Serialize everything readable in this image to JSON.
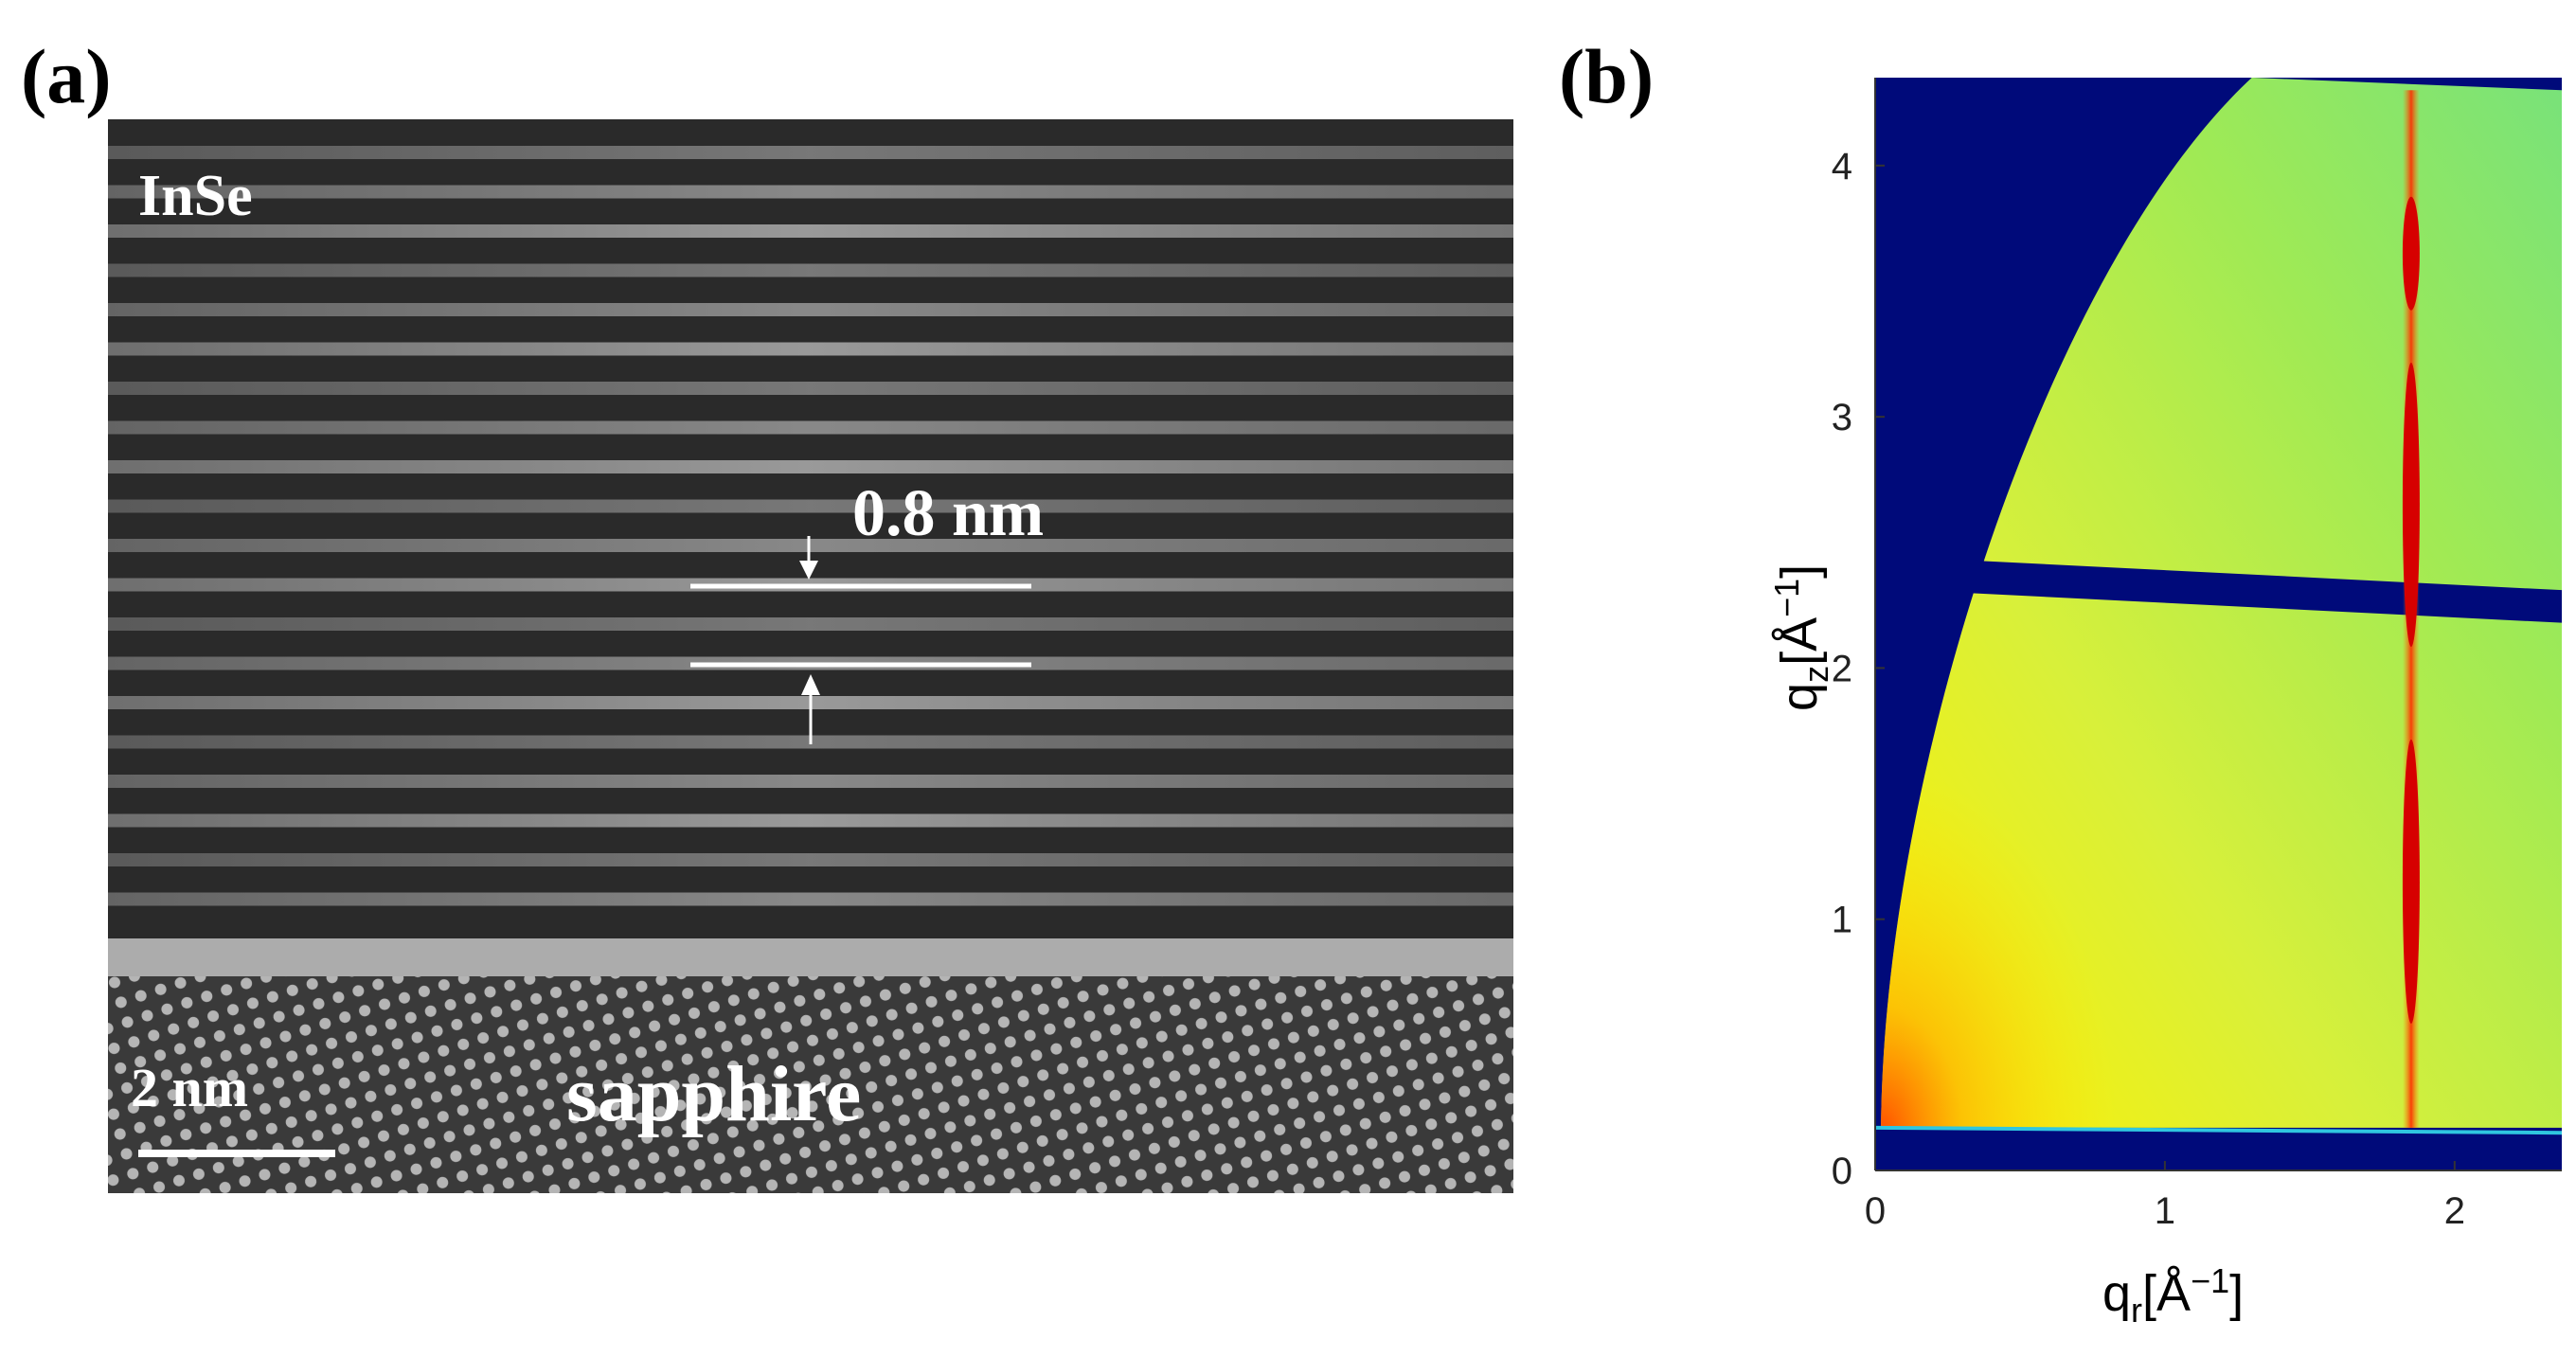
{
  "figure": {
    "panel_a": {
      "label": "(a)",
      "material_label": "InSe",
      "spacing_label": "0.8 nm",
      "scale_bar_label": "2 nm",
      "substrate_label": "sapphire"
    },
    "panel_b": {
      "label": "(b)",
      "xlabel_base": "q",
      "xlabel_sub": "r",
      "xlabel_unit": "[Å",
      "xlabel_exp": "−1",
      "xlabel_close": "]",
      "ylabel_base": "q",
      "ylabel_sub": "z",
      "ylabel_unit": "[Å",
      "ylabel_exp": "−1",
      "ylabel_close": "]"
    }
  },
  "chart_data": {
    "type": "heatmap",
    "title": "",
    "xlabel": "q_r [Å^-1]",
    "ylabel": "q_z [Å^-1]",
    "xlim": [
      0,
      2.37
    ],
    "ylim": [
      0,
      4.35
    ],
    "x_ticks": [
      0,
      1,
      2
    ],
    "y_ticks": [
      0,
      1,
      2,
      3,
      4
    ],
    "x_tick_labels": [
      "0",
      "1",
      "2"
    ],
    "y_tick_labels": [
      "0",
      "1",
      "2",
      "3",
      "4"
    ],
    "bragg_rod_qr": 1.85,
    "rod_intensity_maxima_qz": [
      1.15,
      2.65,
      3.65
    ],
    "detector_gap_qz": [
      2.3,
      2.43
    ],
    "colors": {
      "background": "#000a7a",
      "low": "#7fe86a",
      "mid": "#e8f23a",
      "high": "#ffe800",
      "peak": "#d60000"
    }
  }
}
